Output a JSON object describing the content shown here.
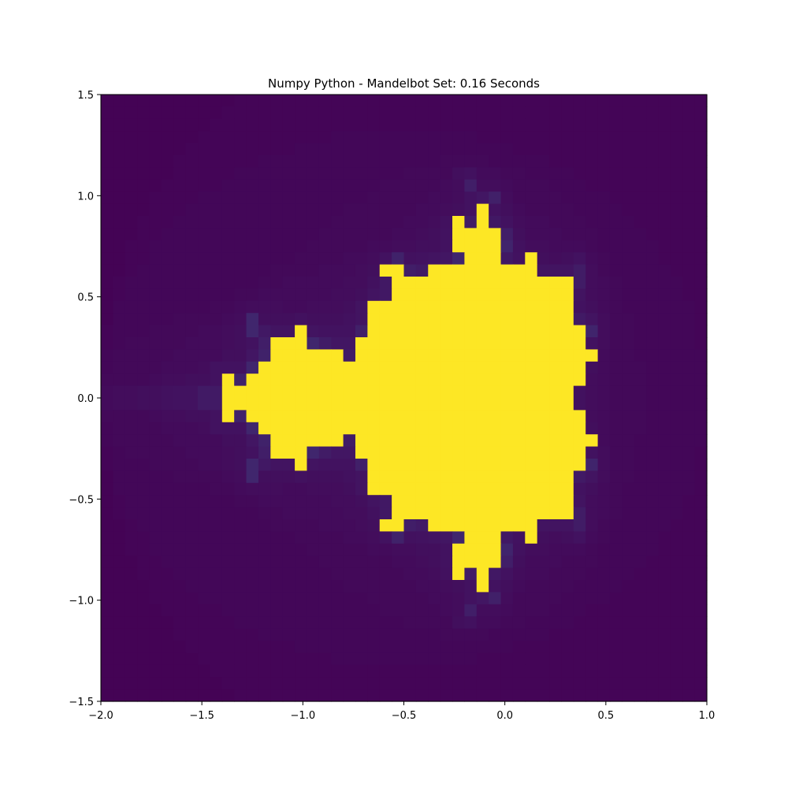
{
  "chart_data": {
    "type": "heatmap",
    "title": "Numpy Python - Mandelbot Set: 0.16 Seconds",
    "xlabel": "",
    "ylabel": "",
    "xlim": [
      -2.0,
      1.0
    ],
    "ylim": [
      -1.5,
      1.5
    ],
    "x_ticks": [
      {
        "value": -2.0,
        "label": "−2.0"
      },
      {
        "value": -1.5,
        "label": "−1.5"
      },
      {
        "value": -1.0,
        "label": "−1.0"
      },
      {
        "value": -0.5,
        "label": "−0.5"
      },
      {
        "value": 0.0,
        "label": "0.0"
      },
      {
        "value": 0.5,
        "label": "0.5"
      },
      {
        "value": 1.0,
        "label": "1.0"
      }
    ],
    "y_ticks": [
      {
        "value": 1.5,
        "label": "1.5"
      },
      {
        "value": 1.0,
        "label": "1.0"
      },
      {
        "value": 0.5,
        "label": "0.5"
      },
      {
        "value": 0.0,
        "label": "0.0"
      },
      {
        "value": -0.5,
        "label": "−0.5"
      },
      {
        "value": -1.0,
        "label": "−1.0"
      },
      {
        "value": -1.5,
        "label": "−1.5"
      }
    ],
    "grid": {
      "rows": 50,
      "cols": 50
    },
    "max_iterations": 20,
    "colormap": "viridis",
    "colors": {
      "background": "#440154",
      "set": "#fde725"
    },
    "grid_lines": false,
    "legend": "none"
  }
}
